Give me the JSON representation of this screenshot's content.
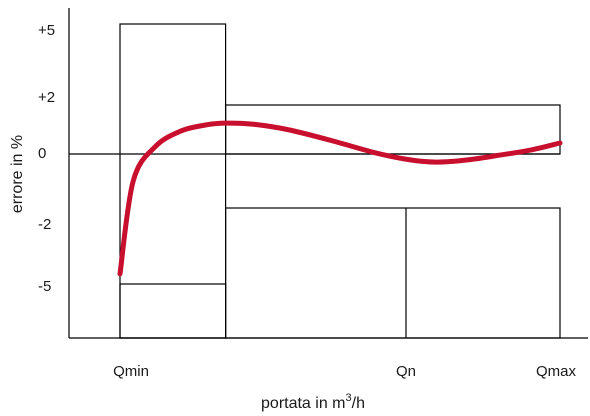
{
  "chart_data": {
    "type": "line",
    "xlabel_main": "portata in m",
    "xlabel_sup": "3",
    "xlabel_tail": "/h",
    "ylabel": "errore in %",
    "x_ticks": [
      "Qmin",
      "Qn",
      "Qmax"
    ],
    "y_ticks": [
      "+5",
      "+2",
      "0",
      "-2",
      "-5"
    ],
    "grid": false,
    "series": [
      {
        "color": "#c8102e",
        "points": [
          [
            0.0,
            -4.6
          ],
          [
            0.03,
            -1.0
          ],
          [
            0.08,
            0.3
          ],
          [
            0.14,
            0.95
          ],
          [
            0.2,
            1.2
          ],
          [
            0.24,
            1.26
          ],
          [
            0.3,
            1.22
          ],
          [
            0.38,
            1.0
          ],
          [
            0.48,
            0.55
          ],
          [
            0.58,
            0.05
          ],
          [
            0.66,
            -0.22
          ],
          [
            0.72,
            -0.3
          ],
          [
            0.79,
            -0.22
          ],
          [
            0.86,
            -0.05
          ],
          [
            0.93,
            0.15
          ],
          [
            1.0,
            0.45
          ]
        ]
      }
    ],
    "tolerance_envelope": {
      "upper": [
        {
          "from": 0.0,
          "to": 0.24,
          "value": 5
        },
        {
          "from": 0.24,
          "to": 1.0,
          "value": 2
        }
      ],
      "lower": [
        {
          "from": 0.0,
          "to": 0.24,
          "value": -5
        },
        {
          "from": 0.24,
          "to": 1.0,
          "value": -2
        }
      ],
      "dividers": [
        0.24,
        0.65
      ]
    }
  }
}
